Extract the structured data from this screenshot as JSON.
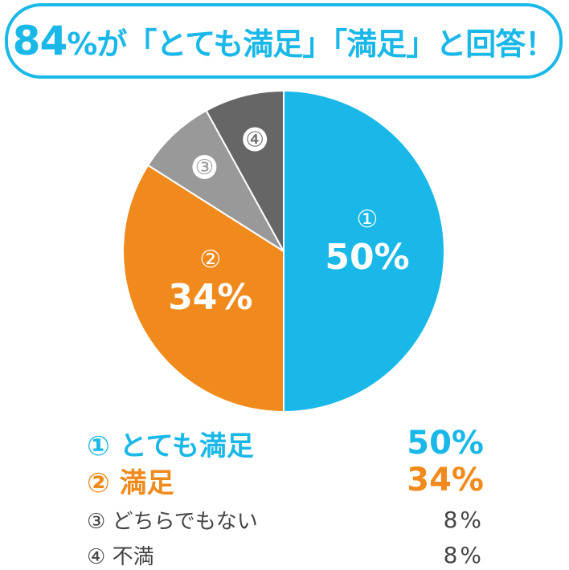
{
  "title": {
    "number": "84",
    "rest": "%が「とても満足」「満足」と回答！"
  },
  "chart_data": {
    "type": "pie",
    "categories": [
      "とても満足",
      "満足",
      "どちらでもない",
      "不満"
    ],
    "markers": [
      "①",
      "②",
      "③",
      "④"
    ],
    "values": [
      50,
      34,
      8,
      8
    ],
    "value_labels": [
      "50%",
      "34%",
      "8%",
      "8%"
    ],
    "colors": [
      "#1ab8e8",
      "#f18a1c",
      "#999999",
      "#666666"
    ],
    "start_angle_deg": 0,
    "direction": "clockwise",
    "legend_placement": "bottom"
  },
  "legend": [
    {
      "marker": "①",
      "label": "とても満足",
      "value": "50%",
      "color": "#1ab8e8"
    },
    {
      "marker": "②",
      "label": "満足",
      "value": "34%",
      "color": "#f18a1c"
    },
    {
      "marker": "③",
      "label": "どちらでもない",
      "value": "8%",
      "color": "#444444"
    },
    {
      "marker": "④",
      "label": "不満",
      "value": "8%",
      "color": "#444444"
    }
  ]
}
